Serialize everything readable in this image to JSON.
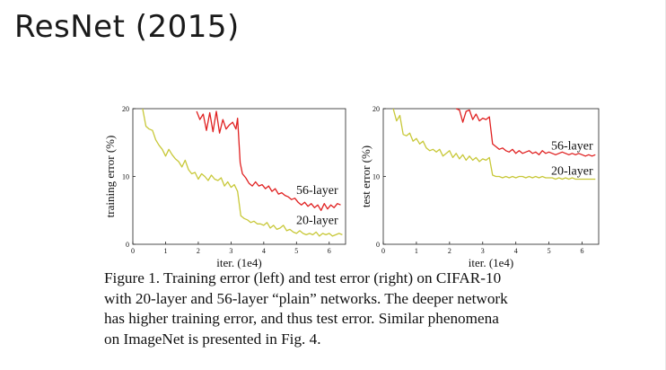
{
  "slide": {
    "title": "ResNet (2015)"
  },
  "chart_data": [
    {
      "type": "line",
      "title": "",
      "xlabel": "iter. (1e4)",
      "ylabel": "training error (%)",
      "xlim": [
        0,
        6.5
      ],
      "ylim": [
        0,
        20
      ],
      "xticks": [
        0,
        1,
        2,
        3,
        4,
        5,
        6
      ],
      "yticks": [
        0,
        10,
        20
      ],
      "grid": false,
      "series": [
        {
          "name": "56-layer",
          "color": "#e02020",
          "x": [
            1.95,
            2.05,
            2.15,
            2.25,
            2.35,
            2.45,
            2.55,
            2.65,
            2.75,
            2.85,
            2.95,
            3.05,
            3.15,
            3.2,
            3.28,
            3.35,
            3.45,
            3.55,
            3.65,
            3.75,
            3.85,
            3.95,
            4.05,
            4.15,
            4.25,
            4.35,
            4.45,
            4.55,
            4.65,
            4.75,
            4.85,
            4.95,
            5.05,
            5.15,
            5.25,
            5.35,
            5.45,
            5.55,
            5.65,
            5.75,
            5.85,
            5.95,
            6.05,
            6.15,
            6.25,
            6.35
          ],
          "y": [
            19.6,
            18.4,
            19.2,
            16.8,
            19.4,
            16.6,
            19.6,
            16.4,
            18.4,
            17.0,
            17.6,
            18.0,
            17.0,
            18.6,
            12.0,
            10.4,
            9.8,
            9.0,
            8.6,
            9.2,
            8.6,
            8.8,
            8.2,
            8.6,
            7.8,
            8.2,
            7.4,
            7.6,
            7.2,
            7.0,
            6.6,
            6.8,
            6.2,
            5.8,
            6.2,
            5.6,
            6.0,
            5.4,
            5.8,
            5.0,
            6.0,
            5.2,
            5.8,
            5.4,
            6.0,
            5.8
          ]
        },
        {
          "name": "20-layer",
          "color": "#c8c838",
          "x": [
            0.3,
            0.4,
            0.5,
            0.6,
            0.7,
            0.8,
            0.9,
            1.0,
            1.1,
            1.2,
            1.3,
            1.4,
            1.5,
            1.6,
            1.7,
            1.8,
            1.9,
            2.0,
            2.1,
            2.2,
            2.3,
            2.4,
            2.5,
            2.6,
            2.7,
            2.8,
            2.9,
            3.0,
            3.1,
            3.2,
            3.3,
            3.4,
            3.5,
            3.6,
            3.7,
            3.8,
            3.9,
            4.0,
            4.1,
            4.2,
            4.3,
            4.4,
            4.5,
            4.6,
            4.7,
            4.8,
            4.9,
            5.0,
            5.1,
            5.2,
            5.3,
            5.4,
            5.5,
            5.6,
            5.7,
            5.8,
            5.9,
            6.0,
            6.1,
            6.2,
            6.3,
            6.4
          ],
          "y": [
            20.0,
            17.4,
            17.0,
            16.8,
            15.4,
            14.6,
            14.0,
            13.0,
            14.0,
            13.2,
            12.6,
            12.2,
            11.4,
            12.4,
            11.0,
            10.4,
            10.6,
            9.6,
            10.4,
            10.0,
            9.4,
            10.2,
            9.6,
            9.4,
            9.8,
            8.6,
            9.2,
            8.4,
            8.8,
            7.8,
            4.2,
            3.8,
            3.6,
            3.2,
            3.4,
            3.0,
            3.0,
            2.8,
            3.2,
            2.4,
            2.8,
            2.2,
            2.4,
            2.8,
            2.0,
            2.2,
            1.8,
            1.6,
            2.0,
            1.6,
            1.4,
            1.6,
            1.4,
            1.8,
            1.2,
            1.6,
            1.4,
            1.6,
            1.2,
            1.4,
            1.6,
            1.4
          ]
        }
      ]
    },
    {
      "type": "line",
      "title": "",
      "xlabel": "iter. (1e4)",
      "ylabel": "test error (%)",
      "xlim": [
        0,
        6.5
      ],
      "ylim": [
        0,
        20
      ],
      "xticks": [
        0,
        1,
        2,
        3,
        4,
        5,
        6
      ],
      "yticks": [
        0,
        10,
        20
      ],
      "grid": false,
      "series": [
        {
          "name": "56-layer",
          "color": "#e02020",
          "x": [
            2.2,
            2.3,
            2.4,
            2.5,
            2.6,
            2.7,
            2.8,
            2.9,
            3.0,
            3.1,
            3.2,
            3.3,
            3.4,
            3.5,
            3.6,
            3.7,
            3.8,
            3.9,
            4.0,
            4.1,
            4.2,
            4.3,
            4.4,
            4.5,
            4.6,
            4.7,
            4.8,
            4.9,
            5.0,
            5.1,
            5.2,
            5.3,
            5.4,
            5.5,
            5.6,
            5.7,
            5.8,
            5.9,
            6.0,
            6.1,
            6.2,
            6.3,
            6.4
          ],
          "y": [
            20.0,
            19.8,
            18.0,
            19.6,
            19.8,
            18.4,
            19.2,
            18.2,
            18.6,
            18.4,
            18.8,
            14.8,
            14.4,
            14.0,
            14.2,
            13.8,
            13.6,
            14.0,
            13.4,
            13.8,
            13.4,
            13.6,
            13.8,
            13.4,
            13.6,
            13.2,
            13.8,
            13.4,
            13.6,
            13.4,
            13.2,
            13.4,
            13.6,
            13.4,
            13.2,
            13.4,
            13.2,
            13.4,
            13.2,
            13.0,
            13.2,
            13.0,
            13.2
          ]
        },
        {
          "name": "20-layer",
          "color": "#c8c838",
          "x": [
            0.3,
            0.4,
            0.5,
            0.6,
            0.7,
            0.8,
            0.9,
            1.0,
            1.1,
            1.2,
            1.3,
            1.4,
            1.5,
            1.6,
            1.7,
            1.8,
            1.9,
            2.0,
            2.1,
            2.2,
            2.3,
            2.4,
            2.5,
            2.6,
            2.7,
            2.8,
            2.9,
            3.0,
            3.1,
            3.2,
            3.3,
            3.4,
            3.5,
            3.6,
            3.7,
            3.8,
            3.9,
            4.0,
            4.1,
            4.2,
            4.3,
            4.4,
            4.5,
            4.6,
            4.7,
            4.8,
            4.9,
            5.0,
            5.1,
            5.2,
            5.3,
            5.4,
            5.5,
            5.6,
            5.7,
            5.8,
            5.9,
            6.0,
            6.1,
            6.2,
            6.3,
            6.4
          ],
          "y": [
            20.0,
            18.2,
            19.0,
            16.2,
            16.0,
            16.4,
            15.2,
            15.6,
            14.8,
            15.2,
            14.2,
            13.8,
            14.0,
            13.6,
            14.0,
            13.0,
            13.4,
            13.8,
            12.8,
            13.4,
            12.6,
            13.2,
            12.4,
            13.0,
            12.4,
            12.8,
            12.2,
            12.6,
            12.4,
            12.8,
            10.2,
            10.0,
            10.0,
            9.8,
            10.0,
            9.8,
            10.0,
            9.8,
            10.0,
            10.0,
            9.8,
            10.0,
            9.8,
            10.0,
            9.8,
            10.0,
            9.8,
            9.8,
            9.8,
            9.6,
            9.8,
            9.6,
            9.8,
            9.6,
            9.8,
            9.6,
            9.6,
            9.6,
            9.6,
            9.6,
            9.6,
            9.6
          ]
        }
      ]
    }
  ],
  "caption": {
    "lines": [
      "Figure 1. Training error (left) and test error (right) on CIFAR-10",
      "with 20-layer and 56-layer “plain” networks. The deeper network",
      "has higher training error, and thus test error.  Similar phenomena",
      "on ImageNet is presented in Fig. 4."
    ]
  }
}
